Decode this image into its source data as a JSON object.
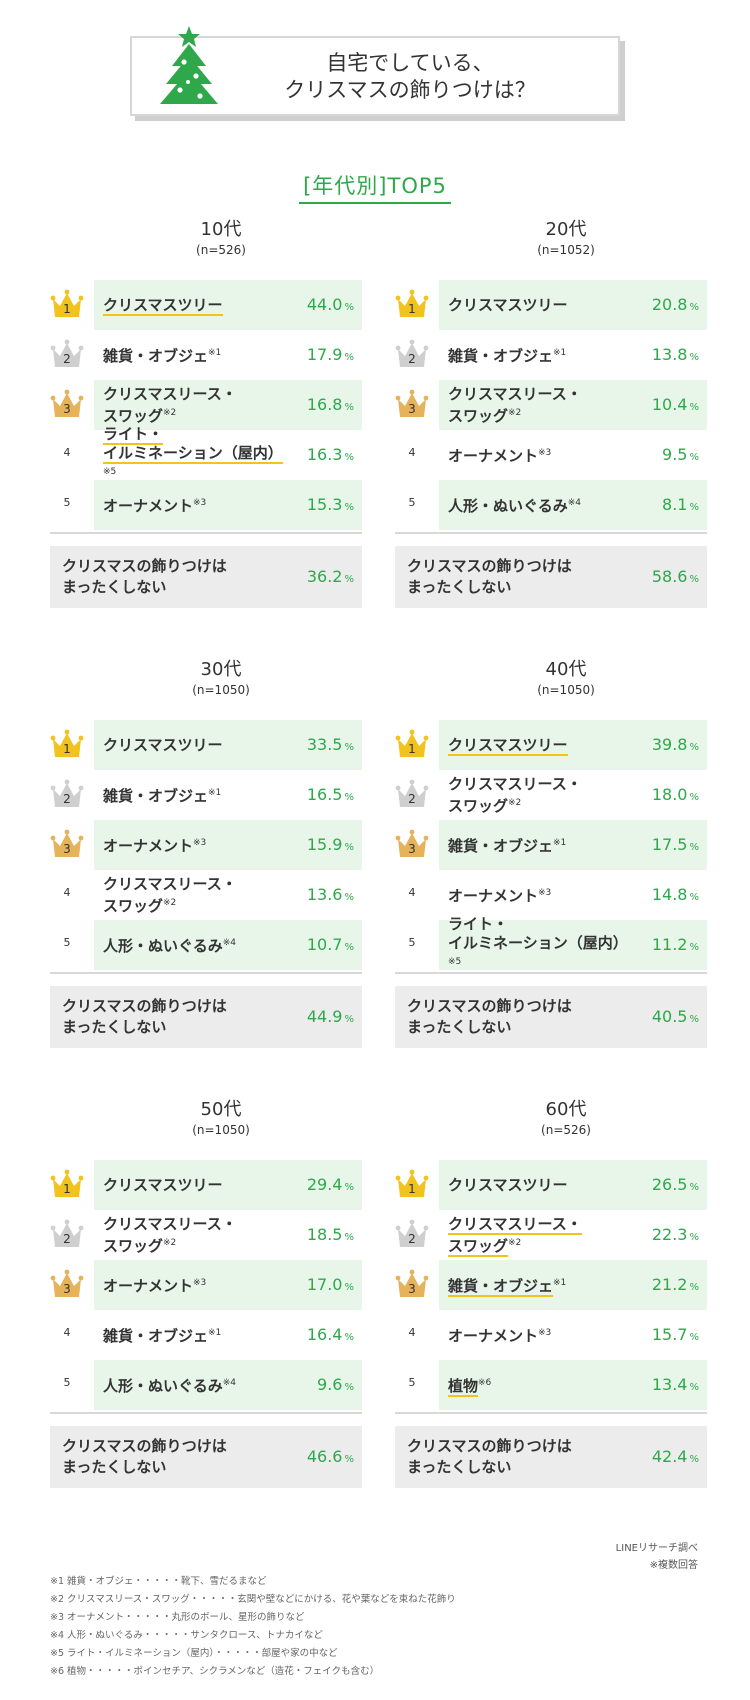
{
  "title": {
    "line1": "自宅でしている、",
    "line2": "クリスマスの飾りつけは？"
  },
  "section_heading": "[年代別]TOP5",
  "colors": {
    "accent_green": "#2ea84a",
    "highlight_bg": "#e8f6ea",
    "gold": "#f2c31c",
    "silver": "#cfcfcf",
    "bronze": "#e6b25a",
    "none_bg": "#ececec"
  },
  "icons": {
    "title": "christmas-tree-icon",
    "rank": "crown-icon"
  },
  "chart_data": [
    {
      "type": "table",
      "title": "10代",
      "n": "(n=526)",
      "items": [
        {
          "rank": "1",
          "label": "クリスマスツリー",
          "note": "",
          "value": 44.0,
          "pct": "44.0",
          "underline": true
        },
        {
          "rank": "2",
          "label": "雑貨・オブジェ",
          "note": "※1",
          "value": 17.9,
          "pct": "17.9",
          "underline": false
        },
        {
          "rank": "3",
          "label": "クリスマスリース・\nスワッグ",
          "note": "※2",
          "value": 16.8,
          "pct": "16.8",
          "underline": false
        },
        {
          "rank": "4",
          "label": "ライト・\nイルミネーション（屋内）",
          "note": "※5",
          "value": 16.3,
          "pct": "16.3",
          "underline": true
        },
        {
          "rank": "5",
          "label": "オーナメント",
          "note": "※3",
          "value": 15.3,
          "pct": "15.3",
          "underline": false
        }
      ],
      "none": {
        "label": "クリスマスの飾りつけは\nまったくしない",
        "value": 36.2,
        "pct": "36.2"
      }
    },
    {
      "type": "table",
      "title": "20代",
      "n": "(n=1052)",
      "items": [
        {
          "rank": "1",
          "label": "クリスマスツリー",
          "note": "",
          "value": 20.8,
          "pct": "20.8",
          "underline": false
        },
        {
          "rank": "2",
          "label": "雑貨・オブジェ",
          "note": "※1",
          "value": 13.8,
          "pct": "13.8",
          "underline": false
        },
        {
          "rank": "3",
          "label": "クリスマスリース・\nスワッグ",
          "note": "※2",
          "value": 10.4,
          "pct": "10.4",
          "underline": false
        },
        {
          "rank": "4",
          "label": "オーナメント",
          "note": "※3",
          "value": 9.5,
          "pct": "9.5",
          "underline": false
        },
        {
          "rank": "5",
          "label": "人形・ぬいぐるみ",
          "note": "※4",
          "value": 8.1,
          "pct": "8.1",
          "underline": false
        }
      ],
      "none": {
        "label": "クリスマスの飾りつけは\nまったくしない",
        "value": 58.6,
        "pct": "58.6"
      }
    },
    {
      "type": "table",
      "title": "30代",
      "n": "(n=1050)",
      "items": [
        {
          "rank": "1",
          "label": "クリスマスツリー",
          "note": "",
          "value": 33.5,
          "pct": "33.5",
          "underline": false
        },
        {
          "rank": "2",
          "label": "雑貨・オブジェ",
          "note": "※1",
          "value": 16.5,
          "pct": "16.5",
          "underline": false
        },
        {
          "rank": "3",
          "label": "オーナメント",
          "note": "※3",
          "value": 15.9,
          "pct": "15.9",
          "underline": false
        },
        {
          "rank": "4",
          "label": "クリスマスリース・\nスワッグ",
          "note": "※2",
          "value": 13.6,
          "pct": "13.6",
          "underline": false
        },
        {
          "rank": "5",
          "label": "人形・ぬいぐるみ",
          "note": "※4",
          "value": 10.7,
          "pct": "10.7",
          "underline": false
        }
      ],
      "none": {
        "label": "クリスマスの飾りつけは\nまったくしない",
        "value": 44.9,
        "pct": "44.9"
      }
    },
    {
      "type": "table",
      "title": "40代",
      "n": "(n=1050)",
      "items": [
        {
          "rank": "1",
          "label": "クリスマスツリー",
          "note": "",
          "value": 39.8,
          "pct": "39.8",
          "underline": true
        },
        {
          "rank": "2",
          "label": "クリスマスリース・\nスワッグ",
          "note": "※2",
          "value": 18.0,
          "pct": "18.0",
          "underline": false
        },
        {
          "rank": "3",
          "label": "雑貨・オブジェ",
          "note": "※1",
          "value": 17.5,
          "pct": "17.5",
          "underline": false
        },
        {
          "rank": "4",
          "label": "オーナメント",
          "note": "※3",
          "value": 14.8,
          "pct": "14.8",
          "underline": false
        },
        {
          "rank": "5",
          "label": "ライト・\nイルミネーション（屋内）",
          "note": "※5",
          "value": 11.2,
          "pct": "11.2",
          "underline": false
        }
      ],
      "none": {
        "label": "クリスマスの飾りつけは\nまったくしない",
        "value": 40.5,
        "pct": "40.5"
      }
    },
    {
      "type": "table",
      "title": "50代",
      "n": "(n=1050)",
      "items": [
        {
          "rank": "1",
          "label": "クリスマスツリー",
          "note": "",
          "value": 29.4,
          "pct": "29.4",
          "underline": false
        },
        {
          "rank": "2",
          "label": "クリスマスリース・\nスワッグ",
          "note": "※2",
          "value": 18.5,
          "pct": "18.5",
          "underline": false
        },
        {
          "rank": "3",
          "label": "オーナメント",
          "note": "※3",
          "value": 17.0,
          "pct": "17.0",
          "underline": false
        },
        {
          "rank": "4",
          "label": "雑貨・オブジェ",
          "note": "※1",
          "value": 16.4,
          "pct": "16.4",
          "underline": false
        },
        {
          "rank": "5",
          "label": "人形・ぬいぐるみ",
          "note": "※4",
          "value": 9.6,
          "pct": "9.6",
          "underline": false
        }
      ],
      "none": {
        "label": "クリスマスの飾りつけは\nまったくしない",
        "value": 46.6,
        "pct": "46.6"
      }
    },
    {
      "type": "table",
      "title": "60代",
      "n": "(n=526)",
      "items": [
        {
          "rank": "1",
          "label": "クリスマスツリー",
          "note": "",
          "value": 26.5,
          "pct": "26.5",
          "underline": false
        },
        {
          "rank": "2",
          "label": "クリスマスリース・\nスワッグ",
          "note": "※2",
          "value": 22.3,
          "pct": "22.3",
          "underline": true
        },
        {
          "rank": "3",
          "label": "雑貨・オブジェ",
          "note": "※1",
          "value": 21.2,
          "pct": "21.2",
          "underline": true
        },
        {
          "rank": "4",
          "label": "オーナメント",
          "note": "※3",
          "value": 15.7,
          "pct": "15.7",
          "underline": false
        },
        {
          "rank": "5",
          "label": "植物",
          "note": "※6",
          "value": 13.4,
          "pct": "13.4",
          "underline": true
        }
      ],
      "none": {
        "label": "クリスマスの飾りつけは\nまったくしない",
        "value": 42.4,
        "pct": "42.4"
      }
    }
  ],
  "percent_sign": "%",
  "source": {
    "line1": "LINEリサーチ調べ",
    "line2": "※複数回答"
  },
  "footnotes": [
    "※1 雑貨・オブジェ・・・・・靴下、雪だるまなど",
    "※2 クリスマスリース・スワッグ・・・・・玄関や壁などにかける、花や葉などを束ねた花飾り",
    "※3 オーナメント・・・・・丸形のボール、星形の飾りなど",
    "※4 人形・ぬいぐるみ・・・・・サンタクロース、トナカイなど",
    "※5 ライト・イルミネーション（屋内）・・・・・部屋や家の中など",
    "※6 植物・・・・・ポインセチア、シクラメンなど（造花・フェイクも含む）"
  ]
}
